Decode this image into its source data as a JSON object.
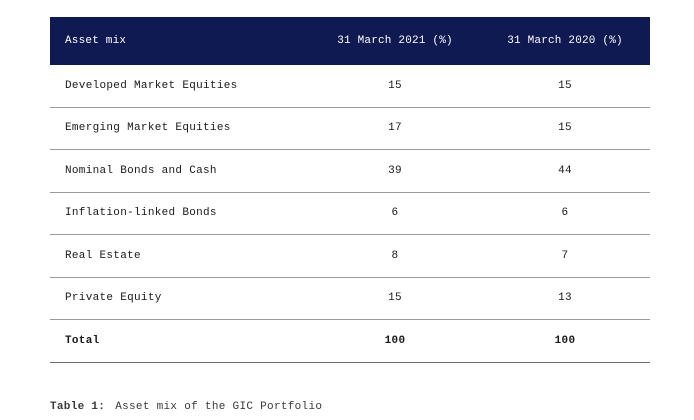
{
  "table": {
    "headers": [
      "Asset mix",
      "31 March 2021 (%)",
      "31 March 2020 (%)"
    ],
    "rows": [
      {
        "label": "Developed Market Equities",
        "y2021": "15",
        "y2020": "15"
      },
      {
        "label": "Emerging Market Equities",
        "y2021": "17",
        "y2020": "15"
      },
      {
        "label": "Nominal Bonds and Cash",
        "y2021": "39",
        "y2020": "44"
      },
      {
        "label": "Inflation-linked Bonds",
        "y2021": "6",
        "y2020": "6"
      },
      {
        "label": "Real Estate",
        "y2021": "8",
        "y2020": "7"
      },
      {
        "label": "Private Equity",
        "y2021": "15",
        "y2020": "13"
      }
    ],
    "total": {
      "label": "Total",
      "y2021": "100",
      "y2020": "100"
    },
    "header_color": "#0f1a52"
  },
  "caption": {
    "label": "Table 1:",
    "text": "Asset mix of the GIC Portfolio"
  }
}
